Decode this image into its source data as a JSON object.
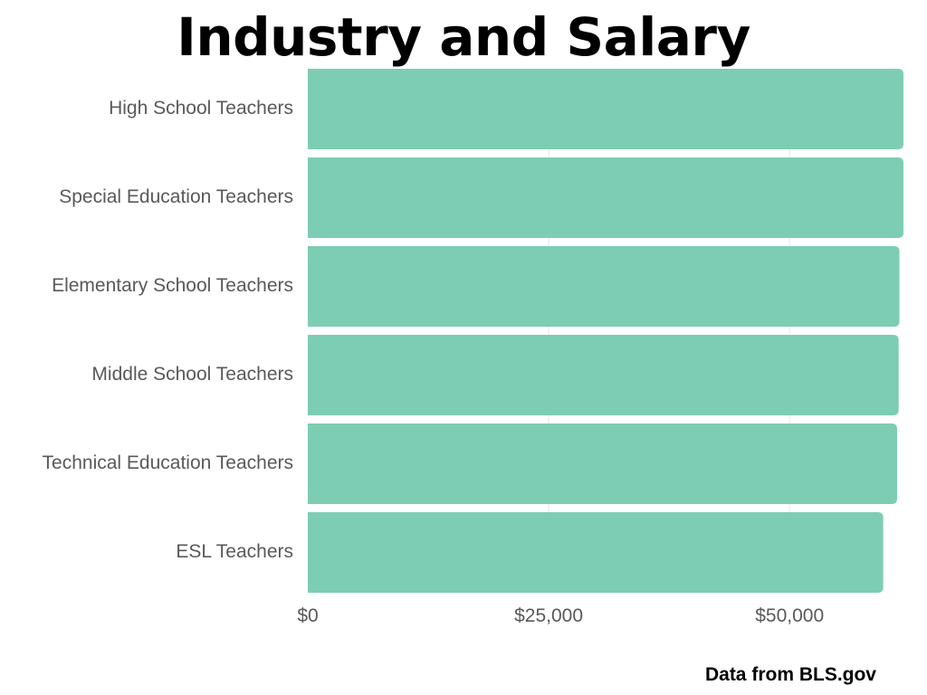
{
  "chart_data": {
    "type": "bar",
    "orientation": "horizontal",
    "title": "Industry and Salary",
    "categories": [
      "High School Teachers",
      "Special Education Teachers",
      "Elementary School Teachers",
      "Middle School Teachers",
      "Technical Education Teachers",
      "ESL Teachers"
    ],
    "values": [
      61820,
      61820,
      61400,
      61320,
      61160,
      59720
    ],
    "xlabel": "",
    "ylabel": "",
    "xlim": [
      0,
      61820
    ],
    "x_ticks": [
      0,
      25000,
      50000
    ],
    "x_tick_labels": [
      "$0",
      "$25,000",
      "$50,000"
    ],
    "grid": true,
    "legend": "none",
    "bar_color": "#7dcdb4",
    "gridline_color": "#e6e6e6"
  },
  "source_note": "Data from BLS.gov"
}
